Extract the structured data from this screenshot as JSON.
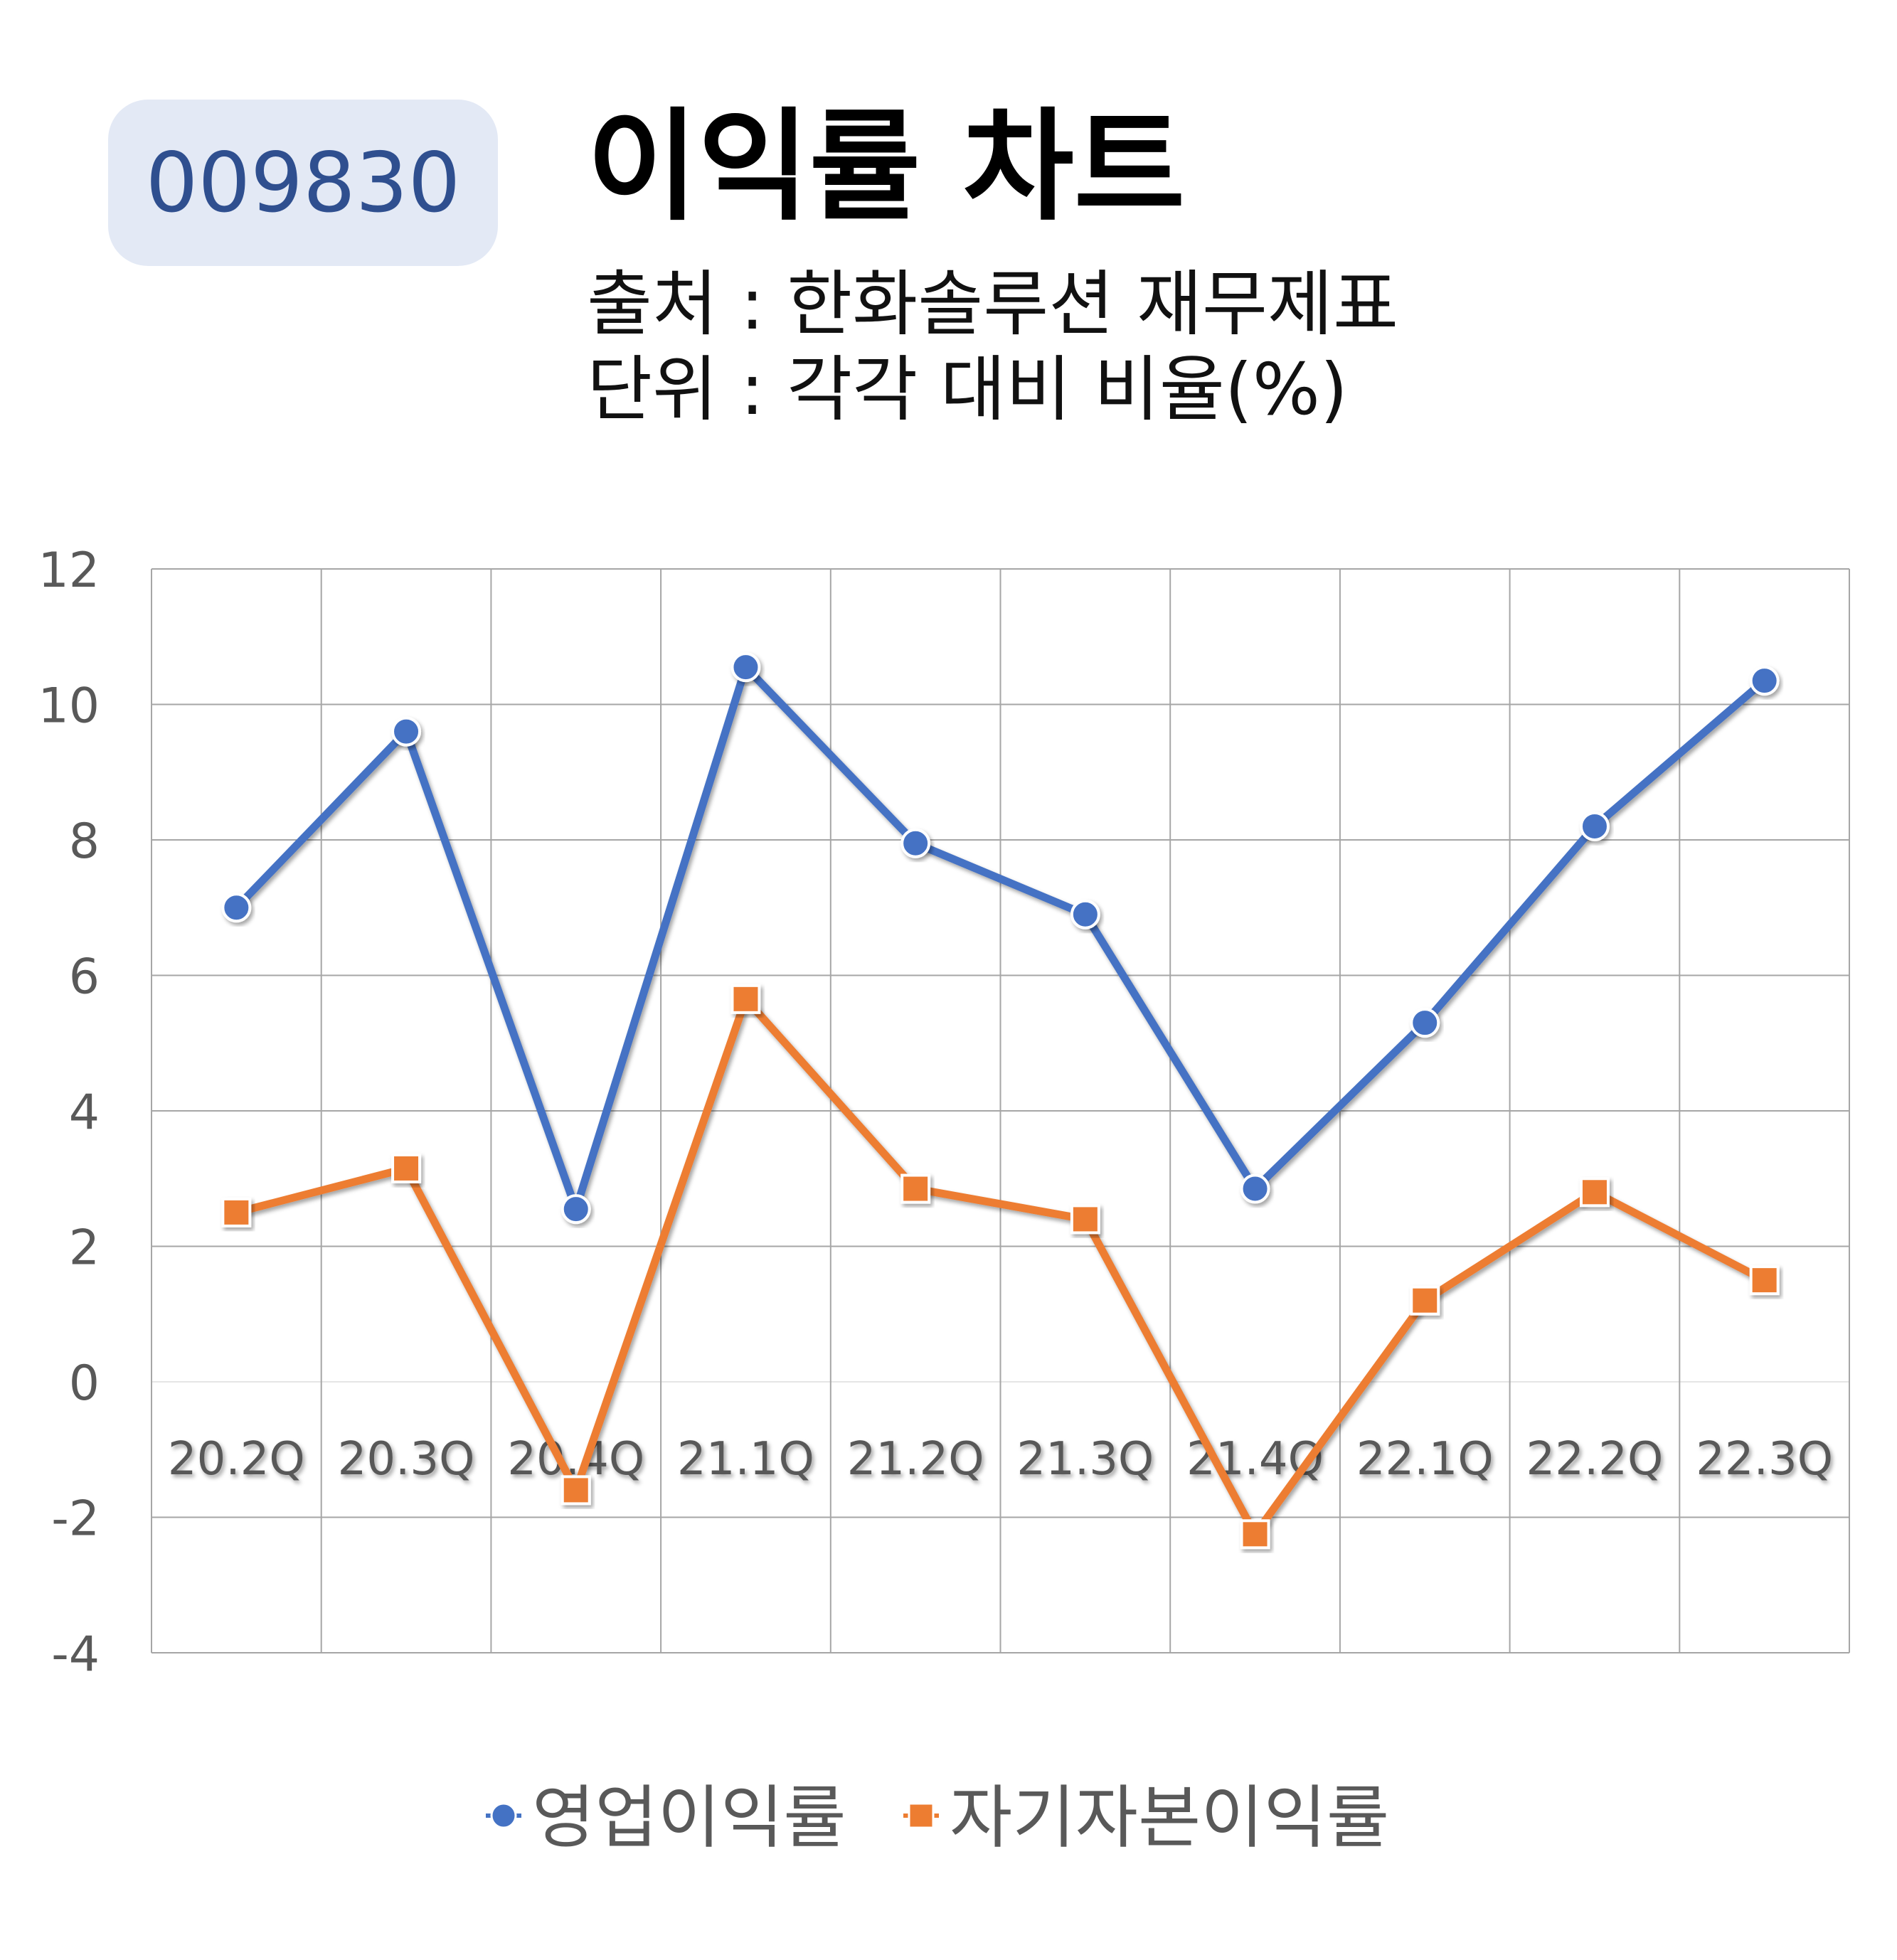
{
  "header": {
    "code": "009830",
    "title": "이익률 차트",
    "source": "출처 : 한화솔루션 재무제표",
    "unit": "단위 : 각각 대비 비율(%)"
  },
  "colors": {
    "series1": "#4472c4",
    "series2": "#ed7d31",
    "badge_bg": "#e3e9f5",
    "badge_text": "#2f4f8f",
    "grid": "#a6a6a6",
    "tick_text": "#595959"
  },
  "chart_data": {
    "type": "line",
    "categories": [
      "20.2Q",
      "20.3Q",
      "20.4Q",
      "21.1Q",
      "21.2Q",
      "21.3Q",
      "21.4Q",
      "22.1Q",
      "22.2Q",
      "22.3Q"
    ],
    "series": [
      {
        "name": "영업이익률",
        "marker": "circle",
        "values": [
          7.0,
          9.6,
          2.55,
          10.55,
          7.95,
          6.9,
          2.85,
          5.3,
          8.2,
          10.35
        ]
      },
      {
        "name": "자기자본이익률",
        "marker": "square",
        "values": [
          2.5,
          3.15,
          -1.6,
          5.65,
          2.85,
          2.4,
          -2.25,
          1.2,
          2.8,
          1.5
        ]
      }
    ],
    "ylim": [
      -4,
      12
    ],
    "yticks": [
      "12",
      "10",
      "8",
      "6",
      "4",
      "2",
      "0",
      "-2",
      "-4"
    ],
    "grid": true,
    "legend_position": "bottom"
  }
}
